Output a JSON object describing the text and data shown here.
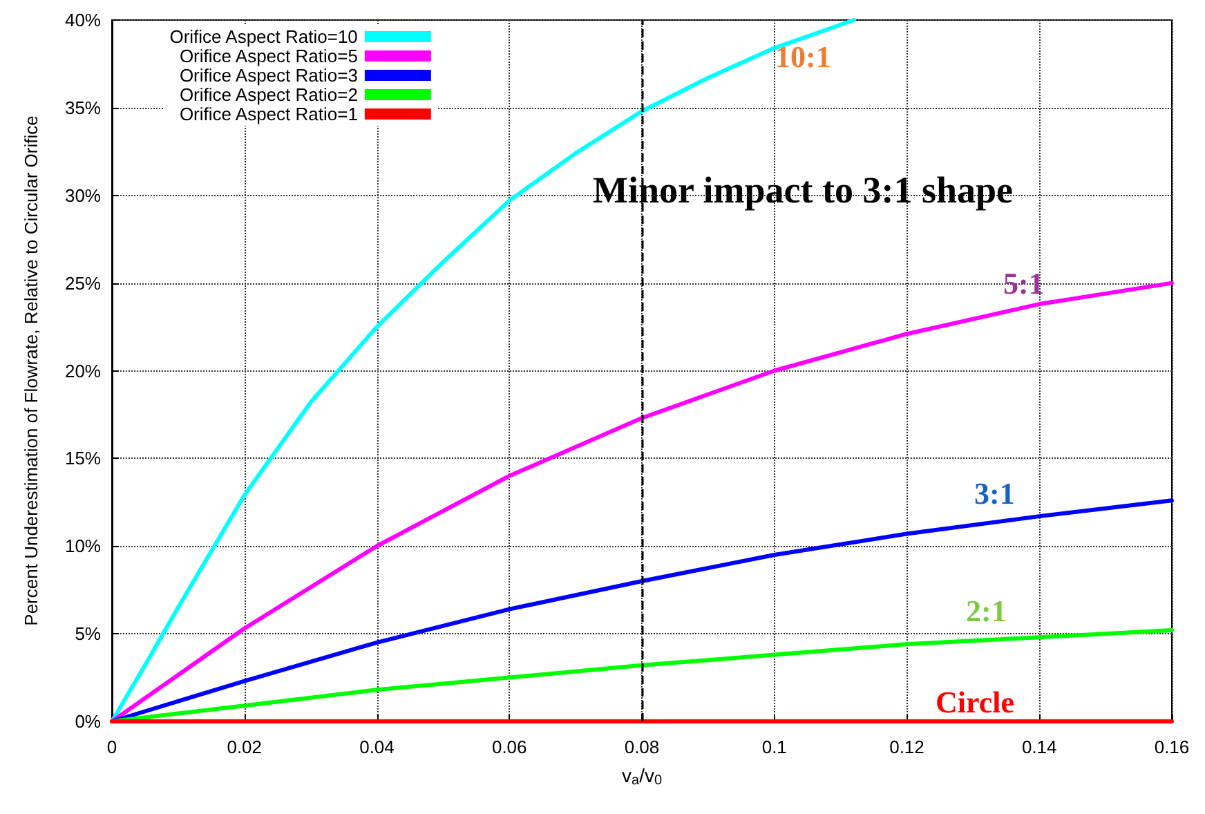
{
  "chart_data": {
    "type": "line",
    "xlabel": "v$_{a}$/v$_{0}$",
    "ylabel": "Percent Underestimation of Flowrate, Relative to Circular Orifice",
    "xlim": [
      0,
      0.16
    ],
    "xticks": [
      0,
      0.02,
      0.04,
      0.06,
      0.08,
      0.1,
      0.12,
      0.14,
      0.16
    ],
    "ylim": [
      0,
      40
    ],
    "yticks": [
      {
        "value": 0,
        "label": "0%"
      },
      {
        "value": 5,
        "label": "5%"
      },
      {
        "value": 10,
        "label": "10%"
      },
      {
        "value": 15,
        "label": "15%"
      },
      {
        "value": 20,
        "label": "20%"
      },
      {
        "value": 25,
        "label": "25%"
      },
      {
        "value": 30,
        "label": "30%"
      },
      {
        "value": 35,
        "label": "35%"
      },
      {
        "value": 40,
        "label": "40%"
      }
    ],
    "grid": true,
    "legend": "top left",
    "marker": "none",
    "line_style": "solid",
    "series": [
      {
        "name": "Orifice Aspect Ratio=10",
        "color": "#00ffff",
        "x": [
          0,
          0.005,
          0.01,
          0.02,
          0.03,
          0.04,
          0.05,
          0.06,
          0.07,
          0.08,
          0.09,
          0.1,
          0.112
        ],
        "values": [
          0,
          3.2,
          6.5,
          12.9,
          18.2,
          22.5,
          26.2,
          29.7,
          32.4,
          34.8,
          36.7,
          38.4,
          40
        ]
      },
      {
        "name": "Orifice Aspect Ratio=5",
        "color": "#ff00ff",
        "x": [
          0,
          0.02,
          0.04,
          0.06,
          0.08,
          0.1,
          0.12,
          0.14,
          0.16
        ],
        "values": [
          0,
          5.3,
          10,
          14,
          17.3,
          20,
          22.1,
          23.8,
          25
        ]
      },
      {
        "name": "Orifice Aspect Ratio=3",
        "color": "#0000ff",
        "x": [
          0,
          0.02,
          0.04,
          0.06,
          0.08,
          0.1,
          0.12,
          0.14,
          0.16
        ],
        "values": [
          0,
          2.3,
          4.5,
          6.4,
          8,
          9.5,
          10.7,
          11.7,
          12.6
        ]
      },
      {
        "name": "Orifice Aspect Ratio=2",
        "color": "#00ff00",
        "x": [
          0,
          0.02,
          0.04,
          0.06,
          0.08,
          0.1,
          0.12,
          0.14,
          0.16
        ],
        "values": [
          0,
          0.9,
          1.8,
          2.5,
          3.2,
          3.8,
          4.4,
          4.8,
          5.2
        ]
      },
      {
        "name": "Orifice Aspect Ratio=1",
        "color": "#ff0000",
        "x": [
          0,
          0.04,
          0.08,
          0.12,
          0.16
        ],
        "values": [
          0,
          0,
          0,
          0,
          0
        ]
      }
    ],
    "ref_lines": [
      {
        "axis": "x",
        "value": 0.08,
        "color": "#000000",
        "line_style": "dashed"
      }
    ],
    "annotations": [
      "10:1",
      "5:1",
      "3:1",
      "2:1",
      "Circle",
      "Minor impact to 3:1 shape"
    ]
  }
}
